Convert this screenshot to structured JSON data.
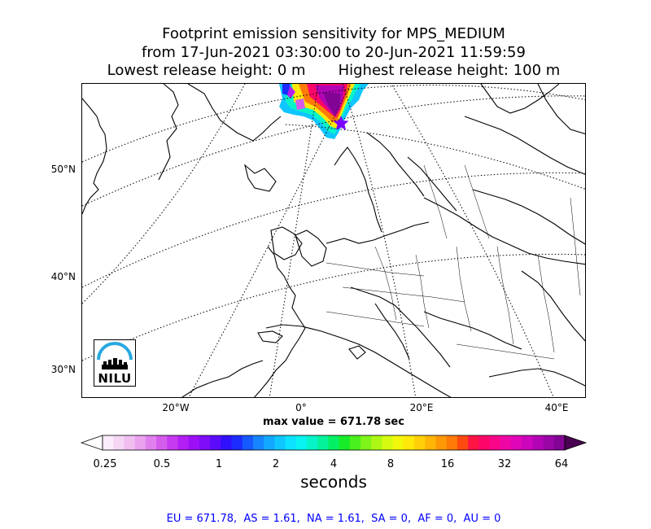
{
  "title": {
    "line1": "Footprint emission sensitivity for MPS_MEDIUM",
    "line2": "from 17-Jun-2021 03:30:00 to 20-Jun-2021 11:59:59",
    "line3": "Lowest release height: 0 m       Highest release height: 100 m"
  },
  "map": {
    "lat_labels": [
      "50°N",
      "40°N",
      "30°N"
    ],
    "lon_labels": [
      "20°W",
      "0°",
      "20°E",
      "40°E"
    ],
    "colors": {
      "coastline": "#000000",
      "graticule": "#000000",
      "release_marker": "#7b00ff"
    },
    "release_site_marker": "star-icon",
    "logo_text": "NILU",
    "logo_color": "#29a8e0"
  },
  "max_value_text": "max value = 671.78 sec",
  "colorbar": {
    "tick_labels": [
      "0.25",
      "0.5",
      "1",
      "2",
      "4",
      "8",
      "16",
      "32",
      "64"
    ],
    "unit_label": "seconds",
    "colors": [
      "#fbecfb",
      "#f5d6f5",
      "#f0bff0",
      "#eaa2ef",
      "#e080ee",
      "#d45ced",
      "#c63af0",
      "#b21ef4",
      "#9d0ff7",
      "#7f0df9",
      "#5a0cfb",
      "#3010fd",
      "#1c2cff",
      "#1659ff",
      "#1685ff",
      "#12a8ff",
      "#0fc6ff",
      "#0ce2ff",
      "#08f4f0",
      "#06f4c8",
      "#04f39a",
      "#04f064",
      "#16ec28",
      "#4af01c",
      "#7ef418",
      "#acf814",
      "#d6fb10",
      "#f3f70c",
      "#ffe80a",
      "#ffd008",
      "#ffb406",
      "#ff9806",
      "#ff7a06",
      "#ff4a10",
      "#ff1444",
      "#fe0668",
      "#f8058a",
      "#ee06a6",
      "#e006b8",
      "#cc06bc",
      "#b204b4",
      "#9a05a6",
      "#820494"
    ]
  },
  "totals_text": "EU = 671.78,  AS = 1.61,  NA = 1.61,  SA = 0,  AF = 0,  AU = 0"
}
